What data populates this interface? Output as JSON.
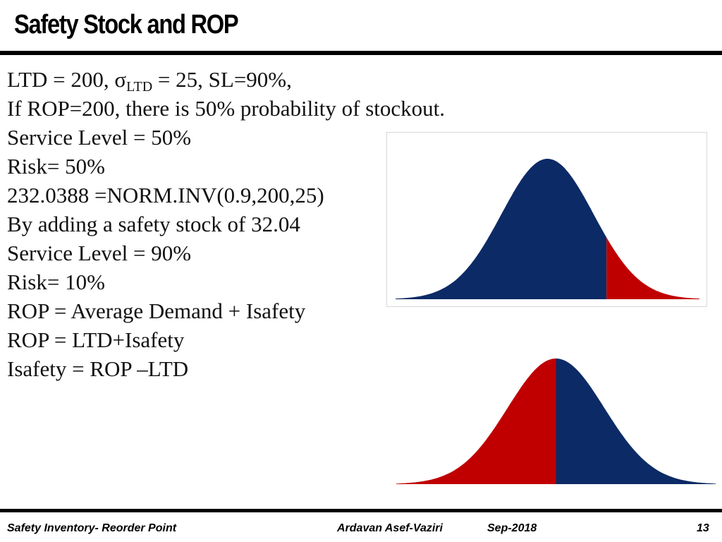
{
  "slide": {
    "title": "Safety Stock and ROP",
    "lines": [
      {
        "pre": "LTD = 200,  σ",
        "sub": "LTD",
        "post": " = 25, SL=90%,"
      },
      {
        "text": "If ROP=200, there is 50% probability of stockout."
      },
      {
        "text": "Service Level = 50%"
      },
      {
        "text": "Risk= 50%"
      },
      {
        "text": "232.0388 =NORM.INV(0.9,200,25)"
      },
      {
        "text": "By adding a safety stock of  32.04"
      },
      {
        "text": "Service Level = 90%"
      },
      {
        "text": "Risk= 10%"
      },
      {
        "text": "ROP = Average Demand + Isafety"
      },
      {
        "text": "ROP = LTD+Isafety"
      },
      {
        "text": "Isafety = ROP –LTD"
      }
    ]
  },
  "charts": {
    "colors": {
      "blue": "#0c2a66",
      "red": "#c00000"
    },
    "top": {
      "mean": 200,
      "sd": 25,
      "cutoff": 232.04,
      "left_region_color": "blue",
      "right_region_color": "red",
      "area_left": 0.9,
      "area_right": 0.1
    },
    "bottom": {
      "mean": 200,
      "sd": 25,
      "cutoff": 200,
      "left_region_color": "red",
      "right_region_color": "blue",
      "area_left": 0.5,
      "area_right": 0.5
    }
  },
  "footer": {
    "left": "Safety Inventory- Reorder Point",
    "author": "Ardavan Asef-Vaziri",
    "date": "Sep-2018",
    "page": "13"
  }
}
